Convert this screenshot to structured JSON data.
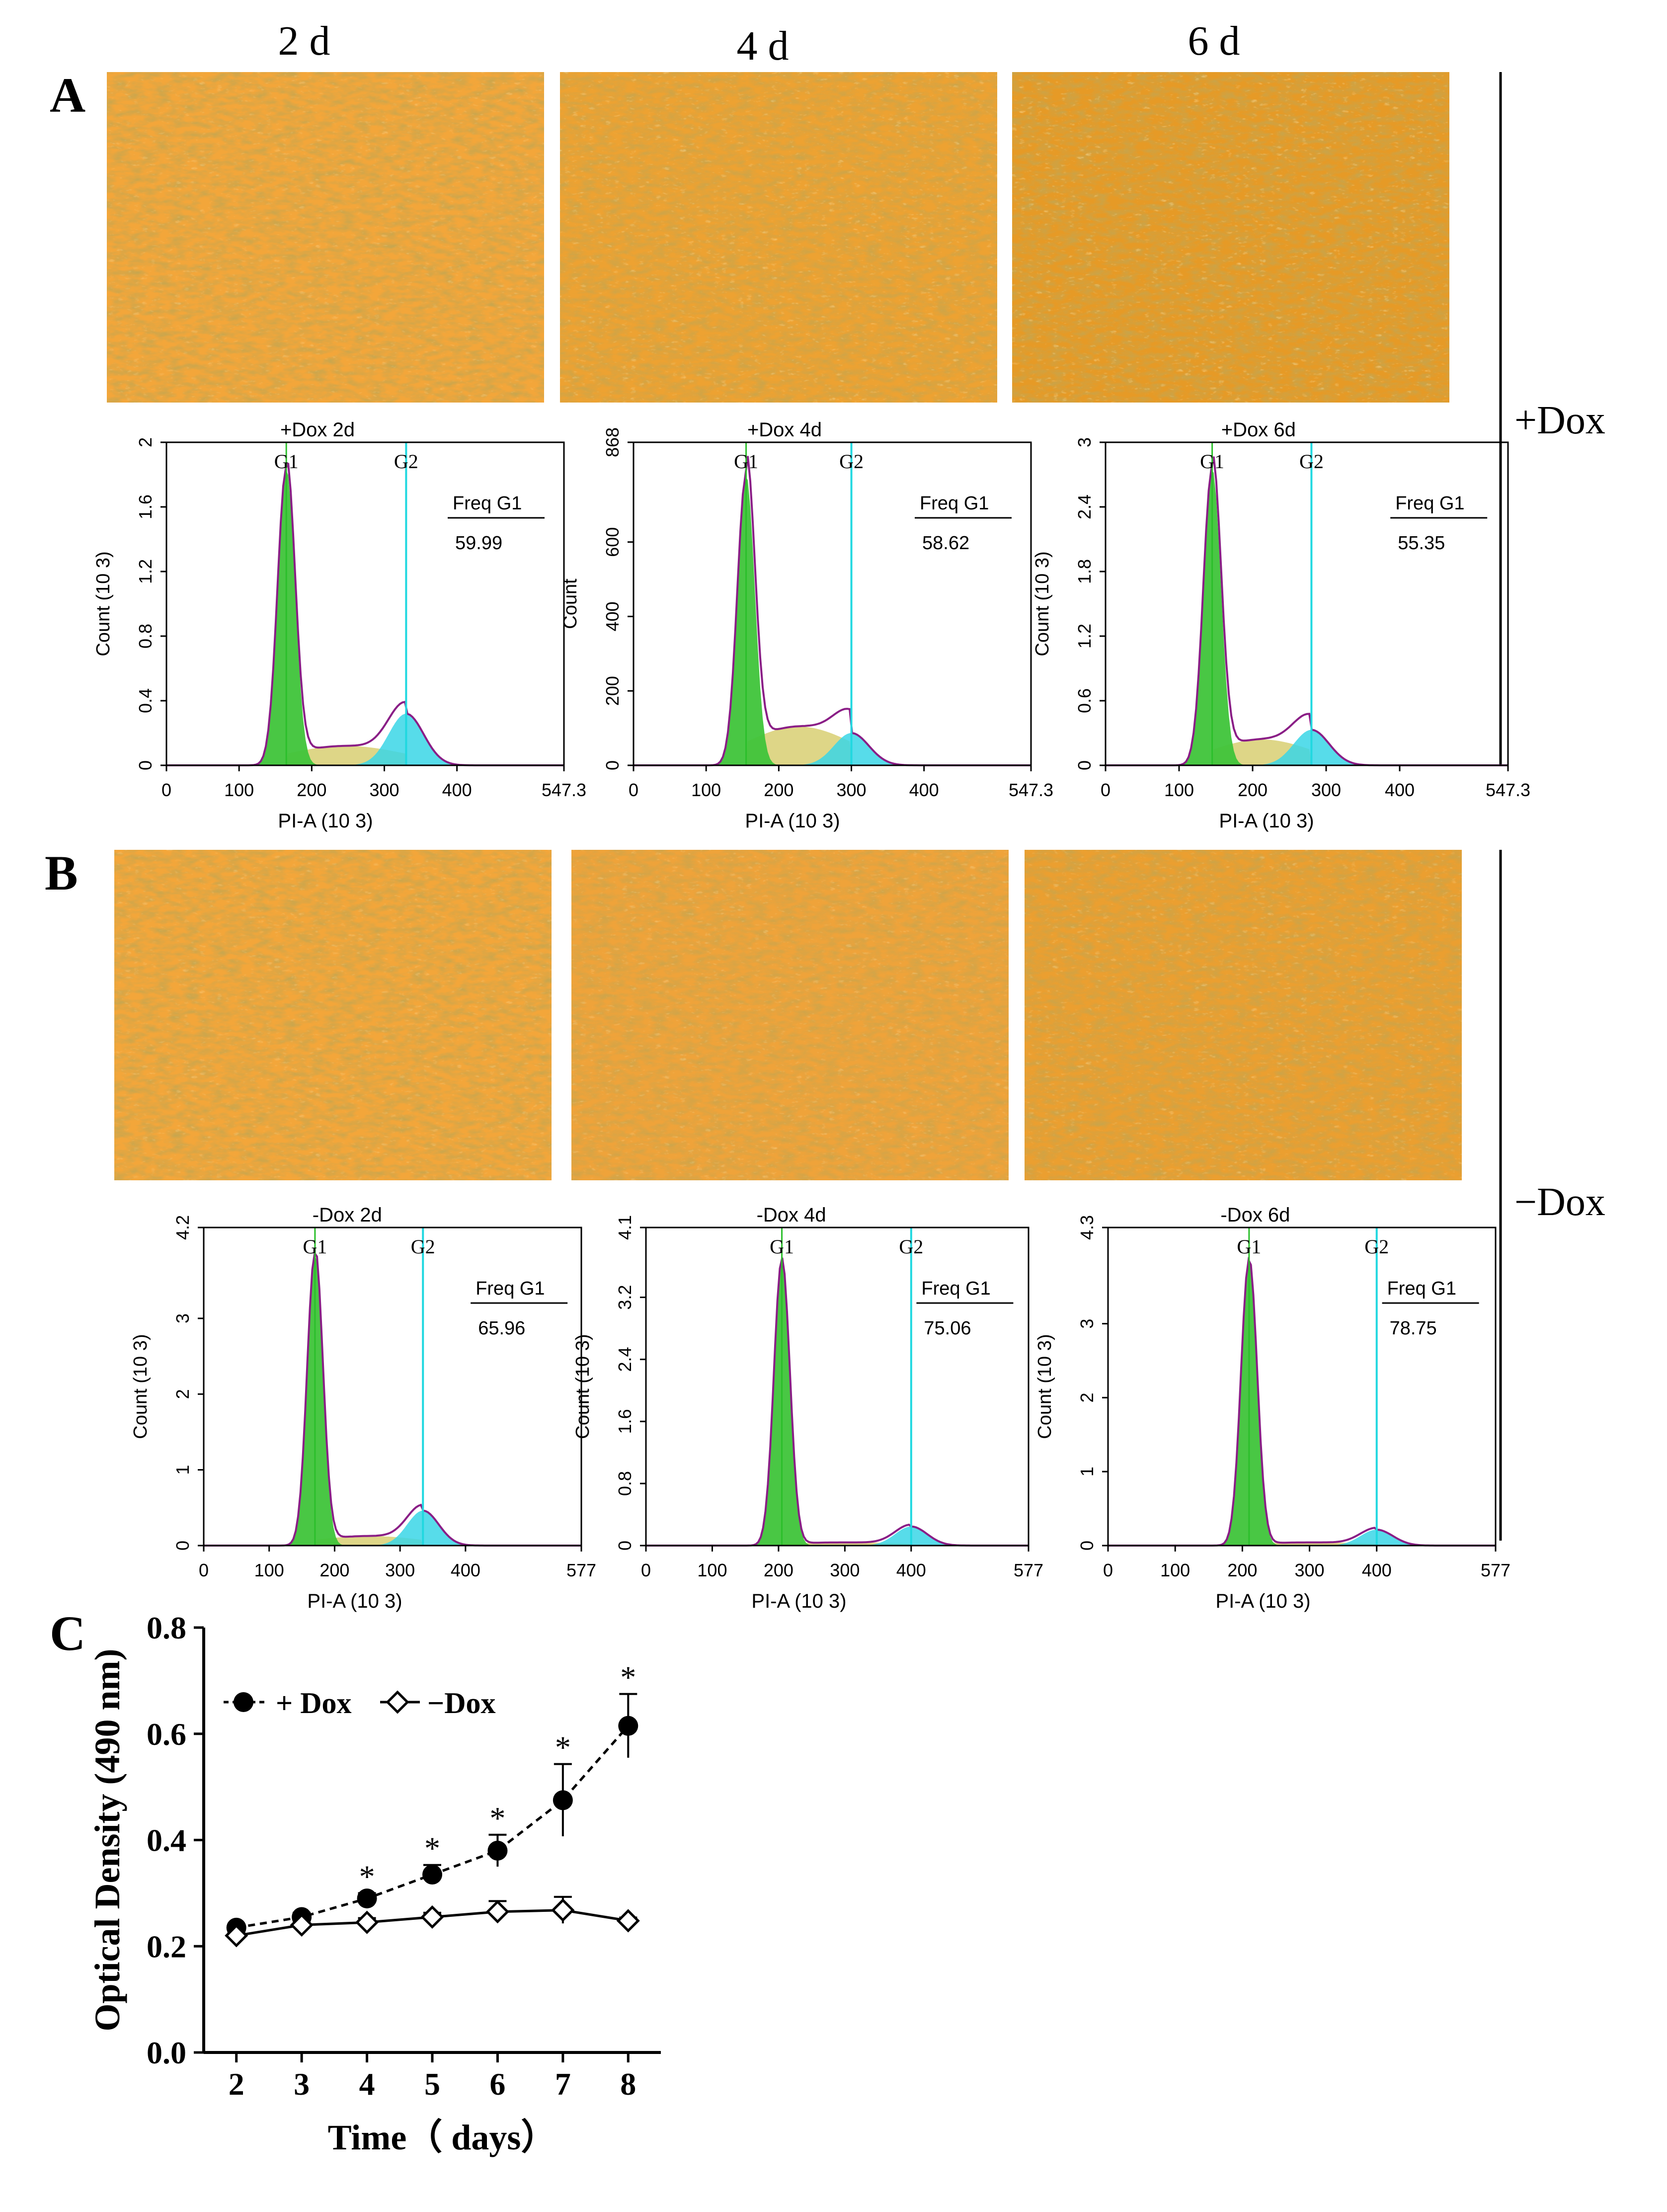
{
  "colors": {
    "micro_bg_a": "#f3a63a",
    "micro_bg_b": "#e89420",
    "g1_fill": "#3fc43a",
    "g2_fill": "#3ad6e6",
    "s_fill": "#d8cf72",
    "outline": "#8a1e86",
    "g2_line": "#20d8e0",
    "g1_line": "#2bbf2b"
  },
  "columns": [
    "2 d",
    "4 d",
    "6 d"
  ],
  "panels": {
    "A": "A",
    "B": "B",
    "C": "C"
  },
  "side_labels": {
    "plus": "+Dox",
    "minus": "−Dox"
  },
  "histograms": [
    {
      "title": "+Dox  2d",
      "ylabel": "Count (10 3)",
      "yticks": [
        "0",
        "0.4",
        "0.8",
        "1.2",
        "1.6",
        "2"
      ],
      "xticks": [
        "0",
        "100",
        "200",
        "300",
        "400",
        "547.3"
      ],
      "xlabel": "PI-A (10 3)",
      "freq_label": "Freq G1",
      "freq_value": "59.99",
      "g1": "G1",
      "g2": "G2",
      "g1_pos": 165,
      "g2_pos": 330,
      "xmax": 547.3,
      "g1_height": 0.92,
      "g2_height": 0.16,
      "s_level": 0.06
    },
    {
      "title": "+Dox  4d",
      "ylabel": "Count",
      "yticks": [
        "0",
        "200",
        "400",
        "600",
        "868"
      ],
      "xticks": [
        "0",
        "100",
        "200",
        "300",
        "400",
        "547.3"
      ],
      "xlabel": "PI-A (10 3)",
      "freq_label": "Freq G1",
      "freq_value": "58.62",
      "g1": "G1",
      "g2": "G2",
      "g1_pos": 155,
      "g2_pos": 300,
      "xmax": 547.3,
      "g1_height": 0.9,
      "g2_height": 0.1,
      "s_level": 0.12
    },
    {
      "title": "+Dox   6d",
      "ylabel": "Count (10 3)",
      "yticks": [
        "0",
        "0.6",
        "1.2",
        "1.8",
        "2.4",
        "3"
      ],
      "xticks": [
        "0",
        "100",
        "200",
        "300",
        "400",
        "547.3"
      ],
      "xlabel": "PI-A (10 3)",
      "freq_label": "Freq G1",
      "freq_value": "55.35",
      "g1": "G1",
      "g2": "G2",
      "g1_pos": 145,
      "g2_pos": 280,
      "xmax": 547.3,
      "g1_height": 0.92,
      "g2_height": 0.11,
      "s_level": 0.08
    },
    {
      "title": "-Dox   2d",
      "ylabel": "Count (10 3)",
      "yticks": [
        "0",
        "1",
        "2",
        "3",
        "4.2"
      ],
      "xticks": [
        "0",
        "100",
        "200",
        "300",
        "400",
        "577"
      ],
      "xlabel": "PI-A (10 3)",
      "freq_label": "Freq G1",
      "freq_value": "65.96",
      "g1": "G1",
      "g2": "G2",
      "g1_pos": 170,
      "g2_pos": 335,
      "xmax": 577,
      "g1_height": 0.92,
      "g2_height": 0.11,
      "s_level": 0.03
    },
    {
      "title": "-Dox   4d",
      "ylabel": "Count (10 3)",
      "yticks": [
        "0",
        "0.8",
        "1.6",
        "2.4",
        "3.2",
        "4.1"
      ],
      "xticks": [
        "0",
        "100",
        "200",
        "300",
        "400",
        "577"
      ],
      "xlabel": "PI-A (10 3)",
      "freq_label": "Freq G1",
      "freq_value": "75.06",
      "g1": "G1",
      "g2": "G2",
      "g1_pos": 205,
      "g2_pos": 400,
      "xmax": 577,
      "g1_height": 0.9,
      "g2_height": 0.06,
      "s_level": 0.01
    },
    {
      "title": "-Dox   6d",
      "ylabel": "Count (10 3)",
      "yticks": [
        "0",
        "1",
        "2",
        "3",
        "4.3"
      ],
      "xticks": [
        "0",
        "100",
        "200",
        "300",
        "400",
        "577"
      ],
      "xlabel": "PI-A (10 3)",
      "freq_label": "Freq G1",
      "freq_value": "78.75",
      "g1": "G1",
      "g2": "G2",
      "g1_pos": 210,
      "g2_pos": 400,
      "xmax": 577,
      "g1_height": 0.9,
      "g2_height": 0.05,
      "s_level": 0.01
    }
  ],
  "chart_data": {
    "type": "line",
    "title": "",
    "xlabel": "Time（ days）",
    "ylabel": "Optical Density (490 nm)",
    "x": [
      2,
      3,
      4,
      5,
      6,
      7,
      8
    ],
    "xticks": [
      "2",
      "3",
      "4",
      "5",
      "6",
      "7",
      "8"
    ],
    "yticks": [
      "0.0",
      "0.2",
      "0.4",
      "0.6",
      "0.8"
    ],
    "ylim": [
      0,
      0.8
    ],
    "series": [
      {
        "name": "+ Dox",
        "marker": "filled-circle",
        "line": "dashed",
        "values": [
          0.235,
          0.255,
          0.29,
          0.335,
          0.38,
          0.475,
          0.615
        ],
        "errors": [
          0.005,
          0.008,
          0.01,
          0.018,
          0.03,
          0.068,
          0.06
        ],
        "significance": [
          "",
          "",
          "*",
          "*",
          "*",
          "*",
          "*"
        ]
      },
      {
        "name": "−Dox",
        "marker": "open-diamond",
        "line": "solid",
        "values": [
          0.22,
          0.24,
          0.245,
          0.255,
          0.265,
          0.268,
          0.248
        ],
        "errors": [
          0.005,
          0.008,
          0.008,
          0.008,
          0.02,
          0.025,
          0.006
        ],
        "significance": [
          "",
          "",
          "",
          "",
          "",
          "",
          ""
        ]
      }
    ]
  }
}
